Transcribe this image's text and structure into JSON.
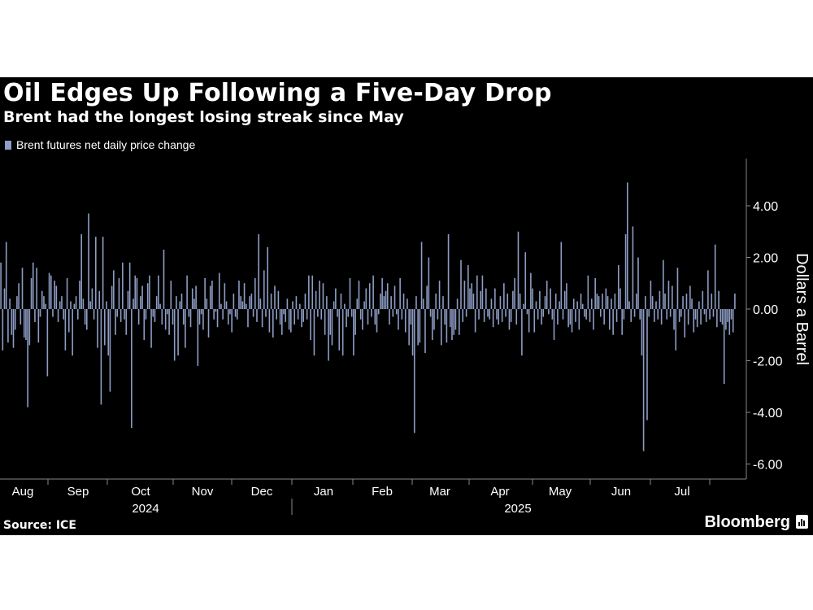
{
  "title": "Oil Edges Up Following a Five-Day Drop",
  "subtitle": "Brent had the longest losing streak since May",
  "legend_label": "Brent futures net daily price change",
  "source": "Source: ICE",
  "brand": "Bloomberg",
  "colors": {
    "background": "#000000",
    "bar": "#8d9dc4",
    "text": "#ffffff",
    "axis": "#888888"
  },
  "chart_data": {
    "type": "bar",
    "ylabel": "Dollars a Barrel",
    "ylim": [
      -6.5,
      5.8
    ],
    "yticks": [
      4,
      2,
      0,
      -2,
      -4,
      -6
    ],
    "ytick_labels": [
      "4.00",
      "2.00",
      "0.00",
      "-2.00",
      "-4.00",
      "-6.00"
    ],
    "x_month_labels": [
      "Aug",
      "Sep",
      "Oct",
      "Nov",
      "Dec",
      "Jan",
      "Feb",
      "Mar",
      "Apr",
      "May",
      "Jun",
      "Jul"
    ],
    "x_year_labels": [
      "2024",
      "2025"
    ],
    "legend": "Brent futures net daily price change",
    "series": [
      {
        "name": "Brent futures net daily price change",
        "values": [
          1.8,
          -1.6,
          0.8,
          2.6,
          -1.3,
          0.4,
          -1.0,
          -1.5,
          -0.8,
          0.5,
          1.0,
          -0.6,
          1.6,
          -1.1,
          -1.2,
          -3.8,
          -1.4,
          1.2,
          1.8,
          -0.5,
          1.6,
          -1.3,
          -0.3,
          0.7,
          0.5,
          0.2,
          -2.6,
          1.4,
          1.3,
          -0.3,
          1.1,
          0.9,
          -0.5,
          0.3,
          0.5,
          -0.4,
          -1.6,
          1.2,
          -0.9,
          0.3,
          -1.8,
          0.2,
          0.5,
          -0.4,
          1.1,
          2.9,
          0.4,
          -0.6,
          -0.8,
          3.7,
          0.3,
          0.8,
          -0.4,
          2.8,
          -1.5,
          0.7,
          -3.7,
          2.8,
          -1.4,
          0.3,
          -1.8,
          -3.2,
          0.9,
          1.5,
          -1.0,
          -0.3,
          1.2,
          -0.5,
          1.8,
          -0.4,
          -1.0,
          0.7,
          1.8,
          -4.6,
          0.4,
          1.3,
          1.2,
          -0.6,
          0.5,
          0.9,
          -1.2,
          -0.4,
          1.0,
          1.3,
          -1.5,
          -0.3,
          -0.5,
          0.5,
          1.3,
          0.2,
          -0.6,
          2.3,
          -0.8,
          -0.2,
          -1.0,
          1.1,
          -0.6,
          -2.0,
          0.5,
          -1.8,
          0.3,
          0.6,
          -0.6,
          -1.5,
          1.3,
          -0.3,
          -0.7,
          0.8,
          0.4,
          0.9,
          -2.2,
          -0.6,
          -0.2,
          -0.8,
          1.2,
          0.4,
          -1.1,
          0.9,
          1.1,
          -0.4,
          -0.1,
          -0.7,
          1.4,
          0.2,
          -0.4,
          1.0,
          0.3,
          -0.6,
          -0.2,
          -0.9,
          0.6,
          -0.3,
          -0.4,
          1.1,
          0.5,
          0.3,
          1.0,
          0.2,
          -0.7,
          0.5,
          0.6,
          -0.3,
          1.2,
          -0.5,
          2.9,
          0.4,
          -0.7,
          1.5,
          -0.3,
          2.4,
          -0.9,
          0.6,
          -1.1,
          0.9,
          -0.4,
          0.7,
          -0.6,
          -1.0,
          -0.2,
          -0.5,
          0.4,
          -0.8,
          -0.9,
          0.3,
          -0.6,
          0.5,
          -0.4,
          0.2,
          -0.7,
          -0.5,
          0.6,
          -0.4,
          1.3,
          -1.2,
          1.3,
          -1.8,
          0.7,
          -0.3,
          1.1,
          -0.4,
          1.0,
          -1.0,
          0.5,
          -2.0,
          -1.0,
          -1.4,
          0.3,
          0.8,
          -0.3,
          -1.6,
          0.6,
          -1.8,
          0.2,
          -0.7,
          -0.3,
          1.2,
          -0.3,
          -1.8,
          -1.0,
          0.4,
          1.1,
          -0.4,
          -0.8,
          0.3,
          0.8,
          -0.6,
          1.0,
          -0.3,
          1.3,
          -0.6,
          -0.9,
          -0.2,
          0.6,
          1.2,
          0.5,
          0.7,
          1.0,
          -0.6,
          0.5,
          -0.3,
          0.9,
          -0.2,
          -0.8,
          1.2,
          -0.4,
          0.6,
          -0.9,
          0.4,
          -1.4,
          -0.6,
          -1.8,
          -4.8,
          0.5,
          -1.4,
          -1.3,
          2.6,
          0.4,
          -1.7,
          0.9,
          2.0,
          -0.3,
          -1.2,
          -0.8,
          0.6,
          -0.4,
          1.1,
          -1.4,
          0.5,
          -0.6,
          -1.3,
          2.9,
          -0.7,
          -1.2,
          -1.0,
          -0.8,
          0.4,
          -1.0,
          1.9,
          -0.5,
          1.1,
          -0.3,
          1.7,
          0.8,
          1.0,
          0.6,
          -0.9,
          1.3,
          -0.4,
          0.7,
          1.3,
          -0.5,
          0.8,
          -0.3,
          -0.4,
          0.4,
          -0.7,
          0.8,
          -0.4,
          -0.6,
          0.5,
          -0.5,
          1.0,
          -0.3,
          0.6,
          -0.8,
          -0.5,
          0.7,
          1.2,
          -0.6,
          3.0,
          0.6,
          -1.8,
          0.2,
          2.2,
          -0.2,
          -0.9,
          1.4,
          0.8,
          -0.9,
          0.3,
          -0.4,
          0.7,
          -0.6,
          -0.3,
          0.5,
          1.1,
          -0.2,
          0.8,
          -0.4,
          -1.2,
          0.6,
          -0.6,
          0.3,
          2.6,
          -0.4,
          0.7,
          1.0,
          -0.7,
          -0.6,
          -0.9,
          0.4,
          -0.5,
          0.3,
          -0.8,
          0.6,
          0.2,
          -0.3,
          -0.4,
          1.3,
          -0.5,
          0.4,
          -0.8,
          1.2,
          0.6,
          0.5,
          -0.3,
          0.6,
          -0.6,
          0.8,
          0.5,
          -0.8,
          0.4,
          -1.0,
          0.6,
          -0.5,
          1.7,
          0.8,
          -1.0,
          -0.4,
          2.9,
          4.9,
          0.3,
          -0.5,
          3.2,
          -0.3,
          0.6,
          2.0,
          -0.4,
          -1.8,
          -5.5,
          0.5,
          -4.3,
          -0.3,
          1.1,
          0.5,
          -0.5,
          0.3,
          -0.4,
          0.7,
          -0.6,
          1.9,
          0.6,
          -0.4,
          1.1,
          -0.3,
          0.9,
          -0.8,
          -1.6,
          1.6,
          -0.5,
          -0.3,
          0.5,
          -1.1,
          0.6,
          -0.6,
          0.9,
          0.4,
          -0.9,
          -0.4,
          -0.7,
          0.3,
          -0.6,
          0.7,
          -0.2,
          -0.5,
          1.5,
          -0.4,
          0.6,
          -0.3,
          2.5,
          -0.7,
          0.7,
          -0.5,
          -0.6,
          -2.9,
          -0.8,
          -0.5,
          -1.0,
          -0.4,
          -0.9,
          0.6
        ]
      }
    ]
  }
}
